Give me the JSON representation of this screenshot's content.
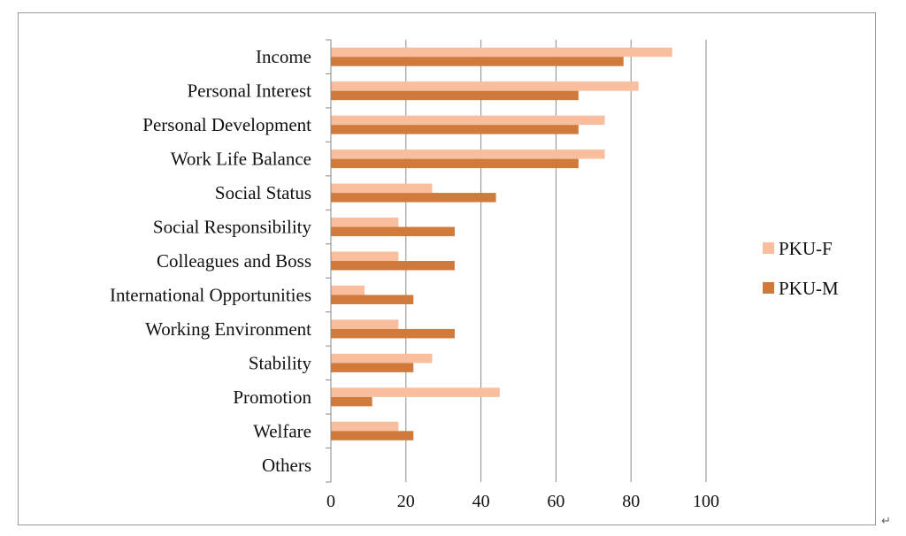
{
  "colors": {
    "pku_f": "#F9BE9E",
    "pku_m": "#D07A3C",
    "grid": "#8a8a8a",
    "axis": "#8a8a8a"
  },
  "chart_data": {
    "type": "bar",
    "orientation": "horizontal",
    "categories": [
      "Income",
      "Personal Interest",
      "Personal Development",
      "Work Life Balance",
      "Social Status",
      "Social Responsibility",
      "Colleagues and Boss",
      "International Opportunities",
      "Working Environment",
      "Stability",
      "Promotion",
      "Welfare",
      "Others"
    ],
    "series": [
      {
        "name": "PKU-F",
        "values": [
          91,
          82,
          73,
          73,
          27,
          18,
          18,
          9,
          18,
          27,
          45,
          18,
          0
        ]
      },
      {
        "name": "PKU-M",
        "values": [
          78,
          66,
          66,
          66,
          44,
          33,
          33,
          22,
          33,
          22,
          11,
          22,
          0
        ]
      }
    ],
    "xlim": [
      0,
      100
    ],
    "xticks": [
      "0",
      "20",
      "40",
      "60",
      "80",
      "100"
    ],
    "grid": true,
    "legend_position": "right"
  }
}
